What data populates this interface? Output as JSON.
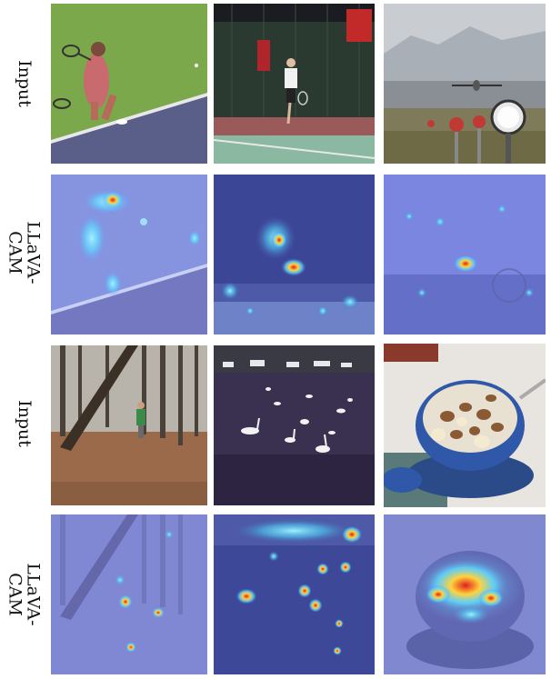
{
  "rows": [
    {
      "label": "Input"
    },
    {
      "label": "LLaVA-\nCAM"
    },
    {
      "label": "Input"
    },
    {
      "label": "LLaVA-\nCAM"
    }
  ]
}
